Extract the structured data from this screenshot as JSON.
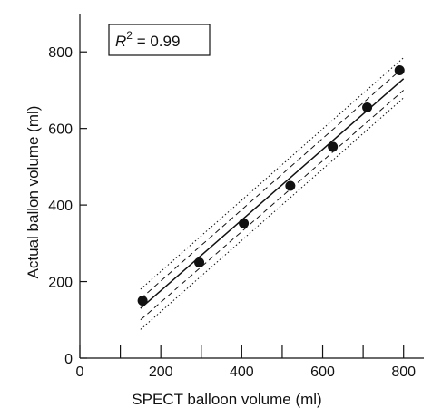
{
  "chart_data": {
    "type": "scatter",
    "title": "",
    "xlabel": "SPECT balloon volume (ml)",
    "ylabel": "Actual ballon volume (ml)",
    "xlim": [
      0,
      850
    ],
    "ylim": [
      0,
      900
    ],
    "x_ticks": [
      0,
      200,
      400,
      600,
      800
    ],
    "x_minor_ticks": [
      100,
      300,
      500,
      700
    ],
    "y_ticks": [
      0,
      200,
      400,
      600,
      800
    ],
    "grid": false,
    "annotation": {
      "text_main": "R",
      "text_sup": "2",
      "text_rest": " = 0.99"
    },
    "series": [
      {
        "points": [
          {
            "x": 155,
            "y": 150
          },
          {
            "x": 295,
            "y": 250
          },
          {
            "x": 405,
            "y": 352
          },
          {
            "x": 520,
            "y": 450
          },
          {
            "x": 625,
            "y": 552
          },
          {
            "x": 710,
            "y": 655
          },
          {
            "x": 790,
            "y": 752
          }
        ]
      }
    ],
    "fit_line": {
      "x": [
        150,
        800
      ],
      "y": [
        130,
        730
      ]
    },
    "confidence_band": {
      "x": [
        150,
        800
      ],
      "upper": [
        155,
        760
      ],
      "lower": [
        100,
        700
      ]
    },
    "prediction_band": {
      "x": [
        150,
        800
      ],
      "upper": [
        180,
        785
      ],
      "lower": [
        75,
        680
      ]
    }
  }
}
